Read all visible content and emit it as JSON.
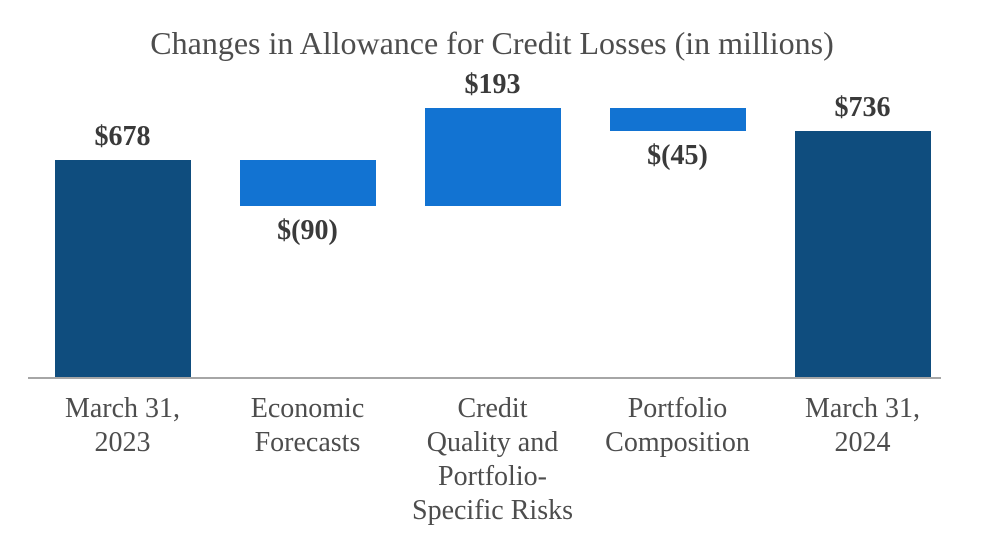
{
  "chart_data": {
    "type": "bar",
    "subtype": "waterfall",
    "title": "Changes in Allowance for Credit Losses (in millions)",
    "xlabel": "",
    "ylabel": "",
    "grid": false,
    "legend": false,
    "y_axis_visible": false,
    "ylim": [
      250,
      781
    ],
    "categories": [
      "March 31, 2023",
      "Economic Forecasts",
      "Credit Quality and Portfolio-Specific Risks",
      "Portfolio Composition",
      "March 31, 2024"
    ],
    "steps": [
      {
        "category": "March 31, 2023",
        "category_lines": [
          "March 31,",
          "2023"
        ],
        "kind": "total",
        "value": 678,
        "data_label": "$678",
        "label_position": "above"
      },
      {
        "category": "Economic Forecasts",
        "category_lines": [
          "Economic",
          "Forecasts"
        ],
        "kind": "delta",
        "value": -90,
        "data_label": "$(90)",
        "label_position": "below"
      },
      {
        "category": "Credit Quality and Portfolio-Specific Risks",
        "category_lines": [
          "Credit",
          "Quality and",
          "Portfolio-",
          "Specific Risks"
        ],
        "kind": "delta",
        "value": 193,
        "data_label": "$193",
        "label_position": "above"
      },
      {
        "category": "Portfolio Composition",
        "category_lines": [
          "Portfolio",
          "Composition"
        ],
        "kind": "delta",
        "value": -45,
        "data_label": "$(45)",
        "label_position": "below"
      },
      {
        "category": "March 31, 2024",
        "category_lines": [
          "March 31,",
          "2024"
        ],
        "kind": "total",
        "value": 736,
        "data_label": "$736",
        "label_position": "above"
      }
    ]
  },
  "colors": {
    "total_bar": "#0F4D7E",
    "delta_bar": "#1273D2",
    "title_text": "#4D4D4D",
    "value_label_text": "#3A3A3A",
    "category_label_text": "#4D4D4D",
    "axis_line": "#A6A6A6",
    "background": "#FFFFFF"
  }
}
